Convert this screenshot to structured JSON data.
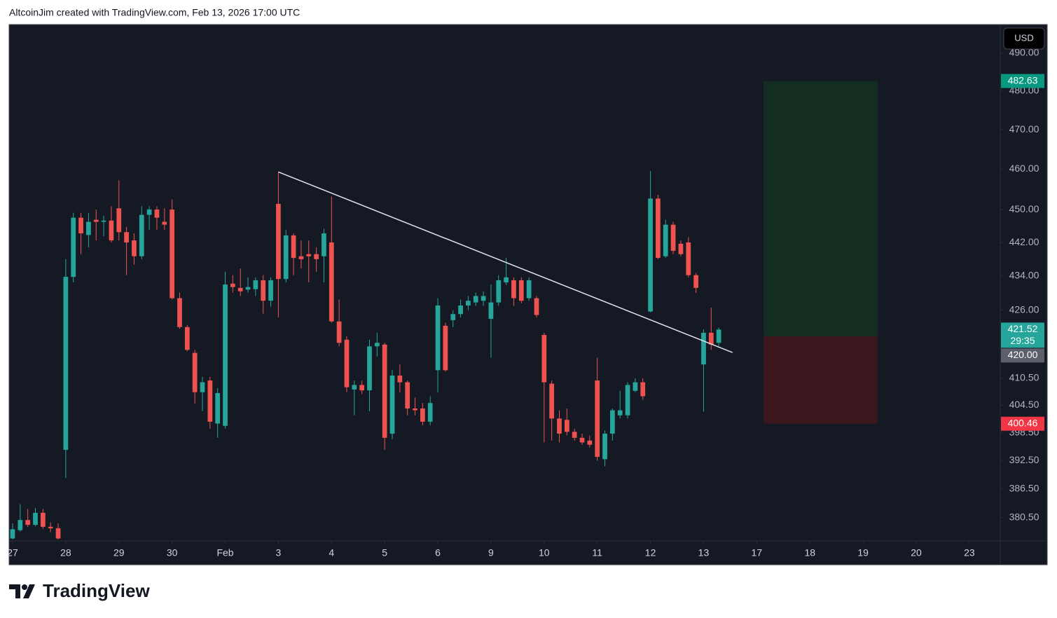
{
  "chart_data": {
    "type": "candlestick",
    "title": "AltcoinJim created with TradingView.com, Feb 13, 2026 17:00 UTC",
    "brand": "TradingView",
    "currency": "USD",
    "log_scale": true,
    "grid": false,
    "up_color": "#26a69a",
    "down_color": "#ef5350",
    "x": [
      0,
      1,
      2,
      3,
      4,
      5,
      6,
      7,
      8,
      9,
      10,
      11,
      12,
      13,
      14,
      15,
      16,
      17,
      18,
      19,
      20,
      21,
      22,
      23,
      24,
      25,
      26,
      27,
      28,
      29,
      30,
      31,
      32,
      33,
      34,
      35,
      36,
      37,
      38,
      39,
      40,
      41,
      42,
      43,
      44,
      45,
      46,
      47,
      48,
      49,
      50,
      51,
      52,
      53,
      54,
      55,
      56,
      57,
      58,
      59,
      60,
      61,
      62,
      63,
      64,
      65,
      66,
      67,
      68,
      69,
      70,
      71,
      72,
      73,
      74,
      75,
      76,
      77,
      78,
      79,
      80,
      81,
      82,
      83,
      84,
      85,
      86,
      87,
      88,
      89,
      90,
      91,
      92,
      93
    ],
    "open": [
      376.2,
      377.9,
      380.0,
      379.0,
      381.5,
      378.6,
      378.3,
      394.8,
      433.8,
      448,
      443.8,
      447.5,
      447.0,
      447.3,
      450.3,
      444.5,
      442.5,
      438.7,
      448.7,
      450,
      447,
      450,
      428.8,
      422.1,
      416.2,
      407.4,
      410,
      400.5,
      400,
      432.2,
      431.2,
      430.8,
      430.9,
      433,
      428.2,
      451.4,
      433.3,
      443.7,
      438.7,
      439.2,
      439.2,
      438.7,
      442,
      423.4,
      419.2,
      408,
      409,
      407.8,
      417.7,
      418.1,
      398.3,
      411.1,
      409.6,
      403.8,
      403.8,
      400.9,
      412.3,
      422.4,
      423.7,
      425.1,
      427.1,
      427.8,
      428.2,
      424,
      427.8,
      432.5,
      433,
      433,
      428.8,
      428.8,
      420.3,
      409.3,
      401.6,
      401.3,
      398.7,
      397.4,
      396.8,
      410,
      392.8,
      398.3,
      402.3,
      402.3,
      407.7,
      409.6,
      425.7,
      452.7,
      438.7,
      446.3,
      441.7,
      442,
      434.2,
      413.6,
      420.8,
      418.5
    ],
    "high": [
      379.3,
      383.3,
      382.3,
      382.5,
      382.3,
      379.5,
      379.3,
      438,
      449.2,
      449.2,
      449.2,
      450,
      448.5,
      450.8,
      457.2,
      445.8,
      444.2,
      450.8,
      450.8,
      450.8,
      450.3,
      452.5,
      430.1,
      422.6,
      416.9,
      410.8,
      410.8,
      408.3,
      435,
      434.2,
      435.8,
      433.7,
      433.7,
      434.2,
      433.7,
      459.3,
      445,
      444.2,
      442.5,
      442.5,
      440.8,
      445.3,
      453.2,
      428.5,
      420,
      410,
      410,
      419.2,
      420.8,
      418.5,
      412.3,
      413.6,
      410,
      406.2,
      405,
      406.5,
      428.8,
      423.1,
      426,
      428.5,
      429.3,
      430.1,
      430.4,
      432,
      434.2,
      438.3,
      433.7,
      433.7,
      433.7,
      429.3,
      420.8,
      410,
      403.4,
      403.8,
      399.4,
      398.3,
      397.9,
      415.1,
      399,
      403.8,
      407.7,
      409.6,
      410.5,
      410.5,
      459.5,
      453.6,
      447.5,
      447,
      442.5,
      443.3,
      434.7,
      421.6,
      426.6,
      422
    ],
    "low": [
      376,
      377.6,
      378.6,
      378.7,
      378.2,
      377.5,
      376,
      388.8,
      432.5,
      439.2,
      440.8,
      442.5,
      443.5,
      442,
      442.5,
      434.2,
      436.7,
      438,
      445,
      445,
      445,
      428.5,
      421.7,
      416.6,
      404.9,
      403.2,
      399.4,
      397.4,
      399.4,
      430.1,
      429.3,
      430.1,
      429.3,
      425.2,
      426.8,
      424.3,
      432.5,
      434.2,
      435.8,
      432.5,
      435,
      432.5,
      423.1,
      417.7,
      407.4,
      402.3,
      407,
      403.2,
      415.4,
      394.8,
      397.1,
      407.4,
      402.3,
      402.3,
      400.1,
      400.1,
      407.4,
      412.0,
      422.1,
      424.3,
      426,
      427.0,
      427.0,
      415.1,
      427,
      431.9,
      427,
      427.6,
      428.2,
      424.3,
      396.4,
      396.8,
      396.4,
      397.9,
      396.8,
      395.9,
      395.3,
      392.5,
      391.3,
      396.8,
      401.6,
      401.6,
      407.4,
      405.7,
      425.5,
      438,
      438.3,
      439.2,
      438.7,
      433.7,
      430,
      403.1,
      416.9,
      417.7
    ],
    "close": [
      378.1,
      380.0,
      379.0,
      381.5,
      378.6,
      378.3,
      376.2,
      433.8,
      448,
      444.2,
      447.0,
      447.0,
      447.3,
      442.5,
      444.5,
      442,
      438.7,
      448.7,
      450,
      448,
      446.3,
      428.8,
      422.1,
      416.9,
      407.4,
      409.6,
      400.9,
      407.2,
      432,
      431.4,
      430.4,
      431.4,
      433.0,
      428.2,
      433,
      433.3,
      443.7,
      438.3,
      438,
      438.7,
      438,
      444.2,
      423.4,
      418.5,
      408.5,
      409,
      407.8,
      417.7,
      418.5,
      397.4,
      411.1,
      409.6,
      403.8,
      403.4,
      400.9,
      405,
      427.1,
      412.3,
      425.1,
      427.1,
      428.2,
      429.3,
      429.3,
      427.8,
      433,
      433.7,
      428.8,
      428.2,
      433,
      424.9,
      409.6,
      401.6,
      398.3,
      398.7,
      397.4,
      396.4,
      395.9,
      393.3,
      398.3,
      403.4,
      403.4,
      409,
      409.6,
      406.5,
      452.7,
      438.3,
      446.3,
      440,
      439.2,
      434.2,
      431.2,
      420.8,
      418.1,
      421.52
    ],
    "xlim": [
      -0.46,
      130.07
    ],
    "ylim": [
      375.7,
      497.7
    ],
    "xticks": [
      {
        "value": 0,
        "label": "27"
      },
      {
        "value": 7,
        "label": "28"
      },
      {
        "value": 14,
        "label": "29"
      },
      {
        "value": 21,
        "label": "30"
      },
      {
        "value": 28,
        "label": "Feb"
      },
      {
        "value": 35,
        "label": "3"
      },
      {
        "value": 42,
        "label": "4"
      },
      {
        "value": 49,
        "label": "5"
      },
      {
        "value": 56,
        "label": "6"
      },
      {
        "value": 63,
        "label": "9"
      },
      {
        "value": 70,
        "label": "10"
      },
      {
        "value": 77,
        "label": "11"
      },
      {
        "value": 84,
        "label": "12"
      },
      {
        "value": 91,
        "label": "13"
      },
      {
        "value": 98,
        "label": "17"
      },
      {
        "value": 105,
        "label": "18"
      },
      {
        "value": 112,
        "label": "19"
      },
      {
        "value": 119,
        "label": "20"
      },
      {
        "value": 126,
        "label": "23"
      }
    ],
    "yticks": [
      {
        "value": 490,
        "label": "490.00"
      },
      {
        "value": 480,
        "label": "480.00"
      },
      {
        "value": 470,
        "label": "470.00"
      },
      {
        "value": 460,
        "label": "460.00"
      },
      {
        "value": 450,
        "label": "450.00"
      },
      {
        "value": 442,
        "label": "442.00"
      },
      {
        "value": 434,
        "label": "434.00"
      },
      {
        "value": 426,
        "label": "426.00"
      },
      {
        "value": 410.5,
        "label": "410.50"
      },
      {
        "value": 404.5,
        "label": "404.50"
      },
      {
        "value": 398.5,
        "label": "398.50"
      },
      {
        "value": 392.5,
        "label": "392.50"
      },
      {
        "value": 386.5,
        "label": "386.50"
      },
      {
        "value": 380.5,
        "label": "380.50"
      }
    ],
    "trendline": {
      "x": [
        35,
        94.8
      ],
      "y": [
        459.3,
        416.3
      ],
      "color": "#e0e3eb"
    },
    "position": {
      "x": [
        98.9,
        113.9
      ],
      "target": 482.63,
      "entry": 420,
      "stop": 400.46,
      "profit_color": "#132e20",
      "loss_color": "#3b171d"
    },
    "price_labels": [
      {
        "value": 482.63,
        "color": "#089981"
      },
      {
        "value": 421.52,
        "countdown": "29:35",
        "color": "#26a69a"
      },
      {
        "value": 420,
        "label": "420.00",
        "color": "#5d606b"
      },
      {
        "value": 400.46,
        "color": "#f23645"
      }
    ]
  }
}
